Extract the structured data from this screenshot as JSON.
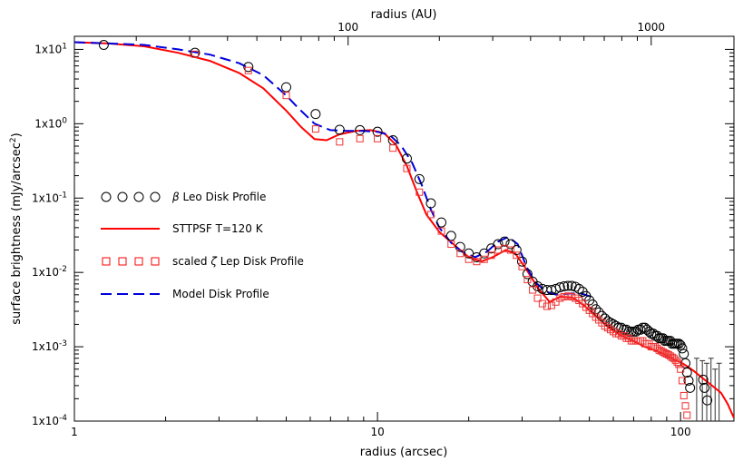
{
  "chart_data": {
    "type": "line",
    "xlabel": "radius (arcsec)",
    "ylabel_main": "surface brightness (mJy/arcsec",
    "ylabel_sup": "2",
    "ylabel_end": ")",
    "top_axis_label": "radius (AU)",
    "xscale": "log",
    "yscale": "log",
    "xlim": [
      1,
      150
    ],
    "ylim": [
      0.0001,
      15
    ],
    "x_ticks": [
      {
        "value": 1,
        "label": "1"
      },
      {
        "value": 10,
        "label": "10"
      },
      {
        "value": 100,
        "label": "100"
      }
    ],
    "y_ticks": [
      {
        "value": 10,
        "label": "1x10",
        "sup": "1"
      },
      {
        "value": 1,
        "label": "1x10",
        "sup": "0"
      },
      {
        "value": 0.1,
        "label": "1x10",
        "sup": "-1"
      },
      {
        "value": 0.01,
        "label": "1x10",
        "sup": "-2"
      },
      {
        "value": 0.001,
        "label": "1x10",
        "sup": "-3"
      },
      {
        "value": 0.0001,
        "label": "1x10",
        "sup": "-4"
      }
    ],
    "top_ticks": [
      {
        "value": 100,
        "label": "100",
        "at_arcsec": 8.0
      },
      {
        "value": 1000,
        "label": "1000",
        "at_arcsec": 80.0
      }
    ],
    "legend": {
      "placement": "center-left",
      "entries": [
        {
          "key": "beta_leo",
          "symbol": "β",
          "label": " Leo Disk Profile",
          "marker": "circle",
          "color": "#000000"
        },
        {
          "key": "sttpsf",
          "label": "STTPSF T=120 K",
          "marker": "line",
          "color": "#ff0000"
        },
        {
          "key": "zeta_lep",
          "prefix": "scaled ",
          "symbol": "ζ",
          "label": " Lep Disk Profile",
          "marker": "square",
          "color": "#ff0000"
        },
        {
          "key": "model",
          "label": "Model Disk Profile",
          "marker": "dashed",
          "color": "#0000dd"
        }
      ]
    },
    "series": [
      {
        "key": "sttpsf",
        "color": "#ff0000",
        "style": "solid",
        "x": [
          1.0,
          1.3,
          1.7,
          2.2,
          2.8,
          3.5,
          4.2,
          5.0,
          5.6,
          6.2,
          6.8,
          7.5,
          8.5,
          9.5,
          10.5,
          11.5,
          12.5,
          13.5,
          14.5,
          16.0,
          18.0,
          20.0,
          22.0,
          24.0,
          26.5,
          28.5,
          31.0,
          34.0,
          37.0,
          40.0,
          44.0,
          48.0,
          53.0,
          58.0,
          64.0,
          70.0,
          76.0,
          82.0,
          88.0,
          92.0,
          96.0,
          100.0,
          105.0,
          110.0,
          118.0,
          127.0,
          136.0,
          143.0,
          150.0
        ],
        "y": [
          12.5,
          12.0,
          11.0,
          9.0,
          7.0,
          4.8,
          3.0,
          1.5,
          0.9,
          0.62,
          0.6,
          0.72,
          0.8,
          0.82,
          0.75,
          0.52,
          0.27,
          0.12,
          0.06,
          0.035,
          0.023,
          0.016,
          0.014,
          0.016,
          0.02,
          0.018,
          0.011,
          0.006,
          0.004,
          0.0047,
          0.0046,
          0.0036,
          0.0025,
          0.0018,
          0.0014,
          0.0012,
          0.001,
          0.0009,
          0.0008,
          0.00072,
          0.00066,
          0.00062,
          0.00055,
          0.00048,
          0.00038,
          0.0003,
          0.00024,
          0.00017,
          0.00011
        ]
      },
      {
        "key": "model",
        "color": "#0000dd",
        "style": "dashed",
        "x": [
          1.0,
          1.3,
          1.7,
          2.2,
          2.8,
          3.5,
          4.2,
          5.0,
          5.5,
          6.2,
          7.0,
          8.0,
          9.0,
          10.0,
          11.0,
          12.0,
          13.0,
          14.0,
          15.0,
          16.0,
          17.5,
          19.0,
          21.0,
          23.0,
          25.0,
          27.0,
          29.0,
          31.0,
          33.0,
          36.0,
          39.0,
          43.0,
          47.0,
          50.0,
          52.0
        ],
        "y": [
          12.5,
          12.0,
          11.5,
          10.0,
          8.5,
          6.5,
          4.5,
          2.4,
          1.6,
          1.0,
          0.82,
          0.8,
          0.8,
          0.78,
          0.7,
          0.5,
          0.3,
          0.15,
          0.07,
          0.04,
          0.025,
          0.019,
          0.016,
          0.019,
          0.026,
          0.03,
          0.024,
          0.012,
          0.0075,
          0.0055,
          0.005,
          0.0052,
          0.0052,
          0.0048,
          0.0045
        ]
      },
      {
        "key": "beta_leo",
        "color": "#000000",
        "style": "marker-circle",
        "x": [
          1.25,
          2.5,
          3.75,
          5.0,
          6.25,
          7.5,
          8.75,
          10.0,
          11.25,
          12.5,
          13.75,
          15.0,
          16.25,
          17.5,
          18.75,
          20.0,
          21.25,
          22.5,
          23.75,
          25.0,
          26.25,
          27.5,
          28.75,
          30.0,
          31.25,
          32.5,
          33.75,
          35.0,
          36.25,
          37.5,
          38.75,
          40.0,
          41.25,
          42.5,
          43.75,
          45.0,
          46.25,
          47.5,
          48.75,
          50.0,
          51.25,
          52.5,
          53.75,
          55.0,
          56.25,
          57.5,
          58.75,
          60.0,
          61.25,
          62.5,
          63.75,
          65.0,
          66.25,
          67.5,
          68.75,
          70.0,
          71.25,
          72.5,
          73.75,
          75.0,
          76.25,
          77.5,
          78.75,
          80.0,
          81.25,
          82.5,
          83.75,
          85.0,
          86.25,
          87.5,
          88.75,
          90.0,
          91.25,
          92.5,
          93.75,
          95.0,
          96.25,
          97.5,
          98.75,
          100.0,
          101.25,
          102.5,
          103.75,
          105.0,
          106.25,
          107.5,
          118.75,
          120.0,
          122.5
        ],
        "y": [
          11.5,
          9.0,
          5.8,
          3.1,
          1.35,
          0.83,
          0.82,
          0.78,
          0.6,
          0.34,
          0.18,
          0.085,
          0.047,
          0.031,
          0.022,
          0.018,
          0.016,
          0.018,
          0.021,
          0.024,
          0.026,
          0.024,
          0.02,
          0.014,
          0.0095,
          0.0075,
          0.0065,
          0.006,
          0.0058,
          0.0058,
          0.006,
          0.0063,
          0.0065,
          0.0066,
          0.0066,
          0.0064,
          0.006,
          0.0055,
          0.0048,
          0.0042,
          0.0037,
          0.0032,
          0.0029,
          0.0026,
          0.0024,
          0.0022,
          0.0021,
          0.002,
          0.0019,
          0.0018,
          0.0018,
          0.0017,
          0.0017,
          0.0016,
          0.0016,
          0.0016,
          0.0016,
          0.0017,
          0.0017,
          0.0018,
          0.0018,
          0.0017,
          0.0016,
          0.0015,
          0.0015,
          0.0014,
          0.0014,
          0.0013,
          0.0013,
          0.0013,
          0.0012,
          0.0012,
          0.0012,
          0.0012,
          0.0011,
          0.0011,
          0.0011,
          0.0011,
          0.0011,
          0.00105,
          0.00095,
          0.0008,
          0.0006,
          0.00045,
          0.00035,
          0.00028,
          0.00036,
          0.00028,
          0.00019
        ]
      },
      {
        "key": "zeta_lep",
        "color": "#ee3333",
        "style": "marker-square",
        "x": [
          2.5,
          3.75,
          5.0,
          6.25,
          7.5,
          8.75,
          10.0,
          11.25,
          12.5,
          13.75,
          15.0,
          16.25,
          17.5,
          18.75,
          20.0,
          21.25,
          22.5,
          23.75,
          25.0,
          26.25,
          27.5,
          28.75,
          30.0,
          31.25,
          32.5,
          33.75,
          35.0,
          36.25,
          37.5,
          38.75,
          40.0,
          41.25,
          42.5,
          43.75,
          45.0,
          46.25,
          47.5,
          48.75,
          50.0,
          51.25,
          52.5,
          53.75,
          55.0,
          56.25,
          57.5,
          58.75,
          60.0,
          61.25,
          62.5,
          63.75,
          65.0,
          66.25,
          67.5,
          68.75,
          70.0,
          71.25,
          72.5,
          73.75,
          75.0,
          76.25,
          77.5,
          78.75,
          80.0,
          81.25,
          82.5,
          83.75,
          85.0,
          86.25,
          87.5,
          88.75,
          90.0,
          91.25,
          92.5,
          93.75,
          95.0,
          96.25,
          97.5,
          98.75,
          100.0,
          101.25,
          102.5,
          103.75,
          105.0
        ],
        "y": [
          8.6,
          5.2,
          2.4,
          0.85,
          0.57,
          0.63,
          0.63,
          0.47,
          0.25,
          0.12,
          0.06,
          0.036,
          0.024,
          0.018,
          0.015,
          0.014,
          0.015,
          0.017,
          0.02,
          0.021,
          0.02,
          0.017,
          0.012,
          0.008,
          0.0058,
          0.0045,
          0.0038,
          0.0035,
          0.0036,
          0.004,
          0.0045,
          0.0047,
          0.0048,
          0.0047,
          0.0045,
          0.0042,
          0.0038,
          0.0034,
          0.0031,
          0.0028,
          0.0025,
          0.0023,
          0.0021,
          0.0019,
          0.0018,
          0.0017,
          0.0016,
          0.0015,
          0.0015,
          0.0014,
          0.0014,
          0.0013,
          0.0013,
          0.0012,
          0.0012,
          0.0012,
          0.0012,
          0.0012,
          0.0012,
          0.0011,
          0.0011,
          0.0011,
          0.001,
          0.001,
          0.001,
          0.00095,
          0.0009,
          0.00088,
          0.00085,
          0.00082,
          0.0008,
          0.00078,
          0.00075,
          0.00072,
          0.0007,
          0.00066,
          0.00062,
          0.00058,
          0.0005,
          0.00035,
          0.00022,
          0.00016,
          0.00012
        ]
      }
    ],
    "error_bars": [
      {
        "x": 113.0,
        "y": 0.00035,
        "low": 0.0001,
        "high": 0.0007
      },
      {
        "x": 118.0,
        "y": 0.0003,
        "low": 0.0001,
        "high": 0.00065
      },
      {
        "x": 122.0,
        "y": 0.0002,
        "low": 0.0001,
        "high": 0.0006
      },
      {
        "x": 126.0,
        "y": 0.00028,
        "low": 0.0001,
        "high": 0.0007
      },
      {
        "x": 130.0,
        "y": 0.00018,
        "low": 0.0001,
        "high": 0.0005
      },
      {
        "x": 134.0,
        "y": 0.00022,
        "low": 0.0001,
        "high": 0.0006
      }
    ]
  }
}
